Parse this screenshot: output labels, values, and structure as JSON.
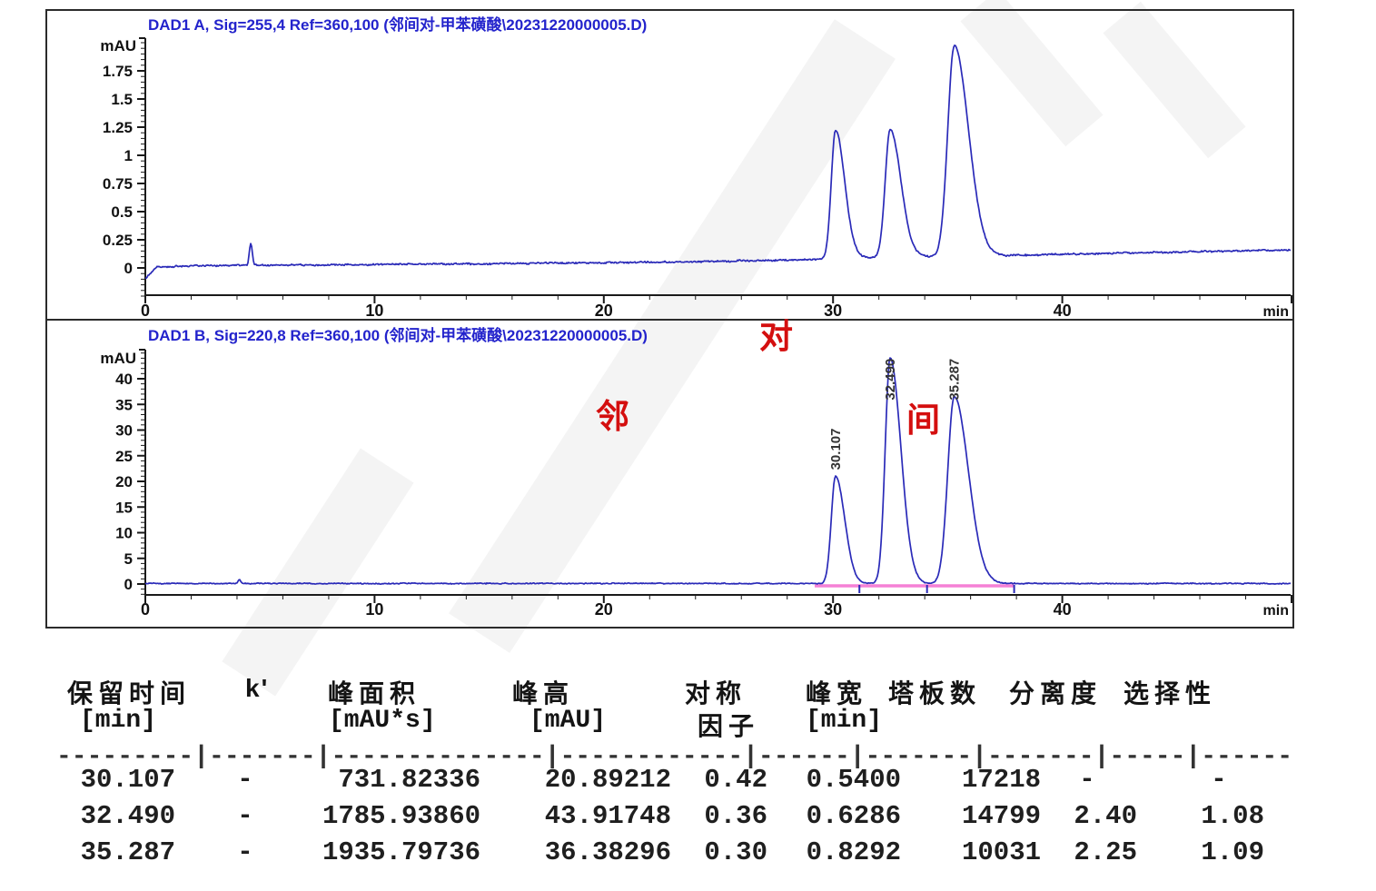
{
  "colors": {
    "trace": "#2a2ab8",
    "title": "#2323cc",
    "axis": "#1a1a1a",
    "tick_label": "#111111",
    "peak_label": "#333333",
    "red_label": "#d40f0f",
    "integration": "#f581d6",
    "table_text": "#1f1f1f"
  },
  "chart_data": [
    {
      "type": "line",
      "title": "DAD1 A, Sig=255,4 Ref=360,100 (邻间对-甲苯磺酸\\20231220000005.D)",
      "y_unit": "mAU",
      "x_unit": "min",
      "ylim": [
        -0.27,
        2.04
      ],
      "xlim": [
        0,
        50
      ],
      "yticks": [
        "0",
        "0.25",
        "0.5",
        "0.75",
        "1",
        "1.25",
        "1.5",
        "1.75"
      ],
      "xticks": [
        "0",
        "10",
        "20",
        "30",
        "40"
      ],
      "grid": false,
      "peaks": [
        {
          "t": 30.107,
          "height": 1.14,
          "fwhm": 0.54
        },
        {
          "t": 32.49,
          "height": 1.13,
          "fwhm": 0.6286
        },
        {
          "t": 35.287,
          "height": 1.87,
          "fwhm": 0.8292
        }
      ],
      "baseline": [
        [
          0,
          -0.09
        ],
        [
          0.5,
          0.005
        ],
        [
          2,
          0.02
        ],
        [
          10,
          0.03
        ],
        [
          22,
          0.05
        ],
        [
          28,
          0.07
        ],
        [
          31.2,
          0.09
        ],
        [
          33.8,
          0.1
        ],
        [
          37.5,
          0.11
        ],
        [
          42,
          0.13
        ],
        [
          50,
          0.16
        ]
      ],
      "noise_amp": 0.012,
      "spike": {
        "t": 4.6,
        "height": 0.2,
        "fwhm": 0.15
      }
    },
    {
      "type": "line",
      "title": "DAD1 B, Sig=220,8 Ref=360,100 (邻间对-甲苯磺酸\\20231220000005.D)",
      "y_unit": "mAU",
      "x_unit": "min",
      "ylim": [
        -2.2,
        45.8
      ],
      "xlim": [
        0,
        50
      ],
      "yticks": [
        "0",
        "5",
        "10",
        "15",
        "20",
        "25",
        "30",
        "35",
        "40"
      ],
      "xticks": [
        "0",
        "10",
        "20",
        "30",
        "40"
      ],
      "grid": false,
      "peaks": [
        {
          "t": 30.107,
          "height": 20.89,
          "fwhm": 0.54,
          "label": "30.107"
        },
        {
          "t": 32.49,
          "height": 43.92,
          "fwhm": 0.6286,
          "label": "32.490"
        },
        {
          "t": 35.287,
          "height": 36.38,
          "fwhm": 0.8292,
          "label": "35.287"
        }
      ],
      "baseline": [
        [
          0,
          0.1
        ],
        [
          50,
          0.1
        ]
      ],
      "noise_amp": 0.16,
      "spike": {
        "t": 4.1,
        "height": 0.8,
        "fwhm": 0.12
      },
      "integration": {
        "from": 29.2,
        "to": 37.9,
        "markers": [
          31.15,
          34.1,
          37.9
        ]
      }
    }
  ],
  "annotations": {
    "ortho": "邻",
    "para": "对",
    "meta": "间"
  },
  "table": {
    "headers_line1": [
      "保留时间",
      "k'",
      "峰面积",
      "峰高",
      "对称",
      "峰宽",
      "塔板数",
      "分离度",
      "选择性"
    ],
    "headers_line2": [
      "[min]",
      "[mAU*s]",
      "[mAU]",
      "因子",
      "[min]"
    ],
    "separator": "---------|-------|--------------|------------|------|-------|-------|-----|------",
    "rows": [
      [
        "30.107",
        "-",
        "731.82336",
        "20.89212",
        "0.42",
        "0.5400",
        "17218",
        "-",
        "-"
      ],
      [
        "32.490",
        "-",
        "1785.93860",
        "43.91748",
        "0.36",
        "0.6286",
        "14799",
        "2.40",
        "1.08"
      ],
      [
        "35.287",
        "-",
        "1935.79736",
        "36.38296",
        "0.30",
        "0.8292",
        "10031",
        "2.25",
        "1.09"
      ]
    ]
  }
}
